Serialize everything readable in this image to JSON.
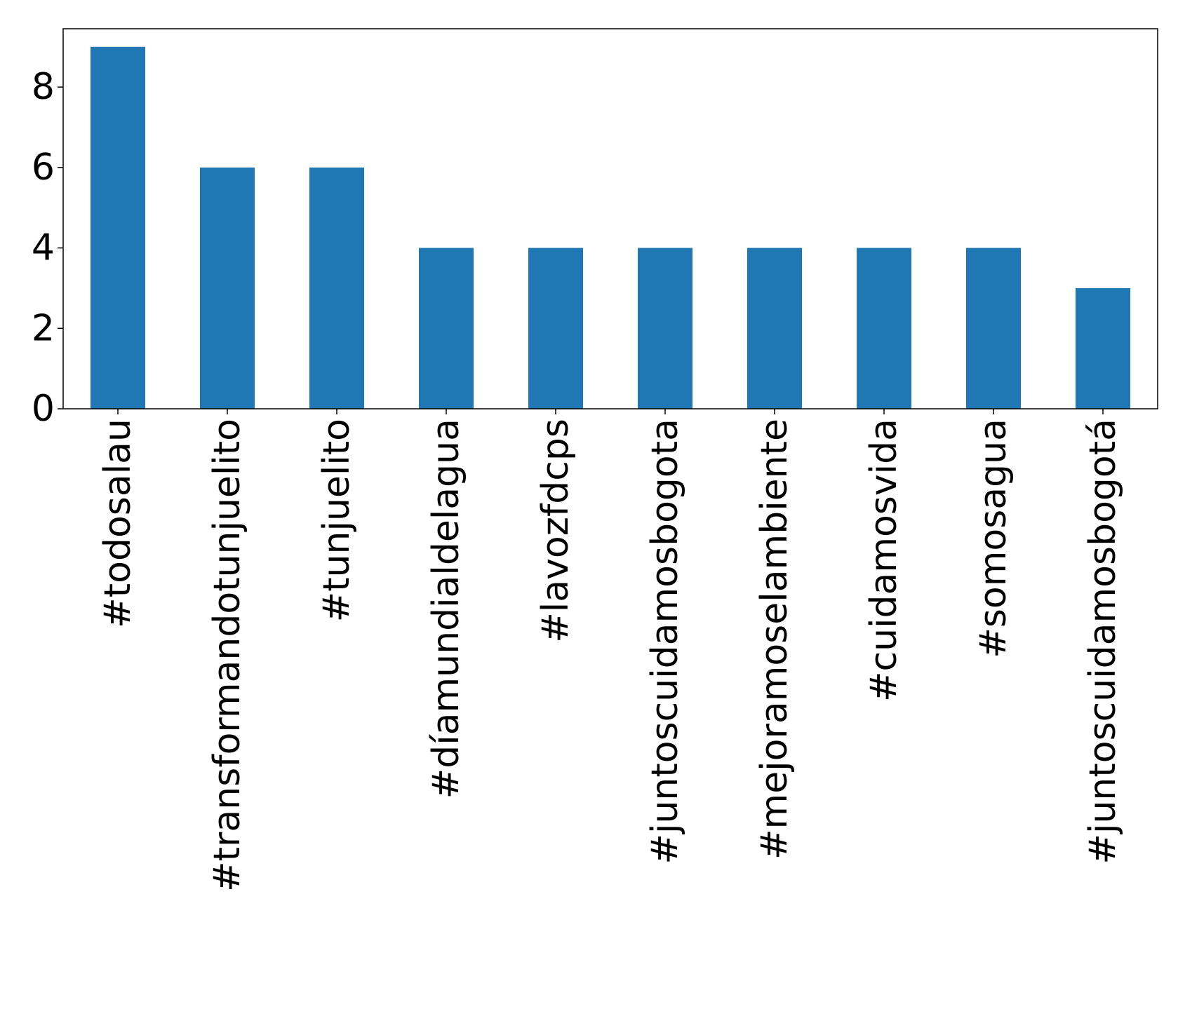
{
  "chart_data": {
    "type": "bar",
    "categories": [
      "#todosalau",
      "#transformandotunjuelito",
      "#tunjuelito",
      "#díamundialdelagua",
      "#lavozfdcps",
      "#juntoscuidamosbogota",
      "#mejoramoselambiente",
      "#cuidamosvida",
      "#somosagua",
      "#juntoscuidamosbogotá"
    ],
    "values": [
      9,
      6,
      6,
      4,
      4,
      4,
      4,
      4,
      4,
      3
    ],
    "yticks": [
      0,
      2,
      4,
      6,
      8
    ],
    "ylim": [
      0,
      9.45
    ],
    "bar_color": "#1f77b4",
    "grid": false,
    "legend": "none"
  }
}
